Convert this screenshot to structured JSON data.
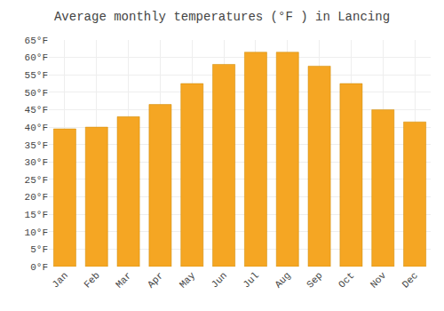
{
  "chart_data": {
    "type": "bar",
    "title": "Average monthly temperatures (°F ) in Lancing",
    "categories": [
      "Jan",
      "Feb",
      "Mar",
      "Apr",
      "May",
      "Jun",
      "Jul",
      "Aug",
      "Sep",
      "Oct",
      "Nov",
      "Dec"
    ],
    "values": [
      39.5,
      40.0,
      43.0,
      46.5,
      52.5,
      58.0,
      61.5,
      61.5,
      57.5,
      52.5,
      45.0,
      41.5
    ],
    "color": "#F5A623",
    "ylim": [
      0,
      65
    ],
    "yticks": [
      {
        "value": 0,
        "label": "0°F"
      },
      {
        "value": 5,
        "label": "5°F"
      },
      {
        "value": 10,
        "label": "10°F"
      },
      {
        "value": 15,
        "label": "15°F"
      },
      {
        "value": 20,
        "label": "20°F"
      },
      {
        "value": 25,
        "label": "25°F"
      },
      {
        "value": 30,
        "label": "30°F"
      },
      {
        "value": 35,
        "label": "35°F"
      },
      {
        "value": 40,
        "label": "40°F"
      },
      {
        "value": 45,
        "label": "45°F"
      },
      {
        "value": 50,
        "label": "50°F"
      },
      {
        "value": 55,
        "label": "55°F"
      },
      {
        "value": 60,
        "label": "60°F"
      },
      {
        "value": 65,
        "label": "65°F"
      }
    ],
    "grid": true
  }
}
